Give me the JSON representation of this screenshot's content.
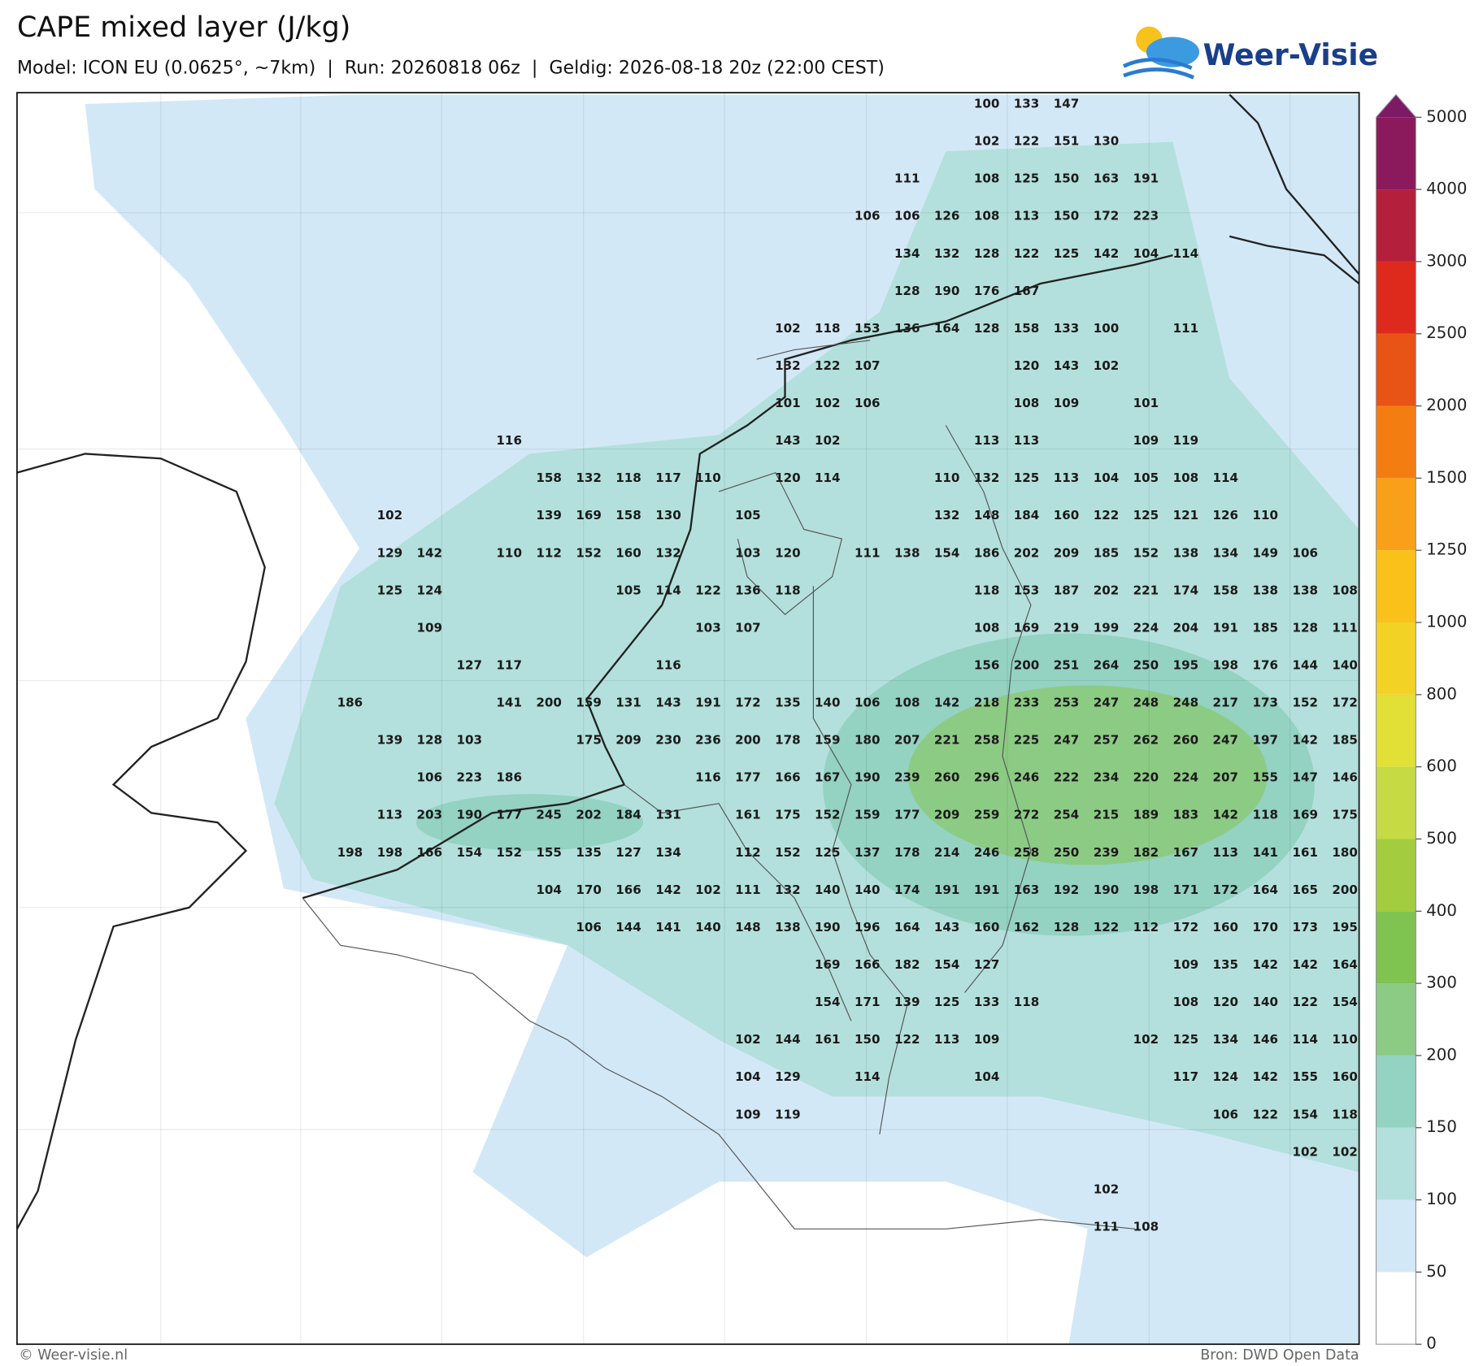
{
  "header": {
    "title": "CAPE mixed layer (J/kg)",
    "subtitle": "Model: ICON EU (0.0625°, ~7km)  |  Run: 20260818 06z  |  Geldig: 2026-08-18 20z (22:00 CEST)"
  },
  "logo": {
    "text": "Weer-Visie"
  },
  "map": {
    "labels": [
      [
        null,
        null,
        null,
        null,
        null,
        null,
        null,
        null,
        null,
        null,
        null,
        null,
        null,
        null,
        null,
        null,
        100,
        133,
        147
      ],
      [
        null,
        null,
        null,
        null,
        null,
        null,
        null,
        null,
        null,
        null,
        null,
        null,
        null,
        null,
        null,
        null,
        102,
        122,
        151,
        130
      ],
      [
        null,
        null,
        null,
        null,
        null,
        null,
        null,
        null,
        null,
        null,
        null,
        null,
        null,
        null,
        111,
        null,
        108,
        125,
        150,
        163,
        191
      ],
      [
        null,
        null,
        null,
        null,
        null,
        null,
        null,
        null,
        null,
        null,
        null,
        null,
        null,
        106,
        106,
        126,
        108,
        113,
        150,
        172,
        223
      ],
      [
        null,
        null,
        null,
        null,
        null,
        null,
        null,
        null,
        null,
        null,
        null,
        null,
        null,
        null,
        134,
        132,
        128,
        122,
        125,
        142,
        104,
        114
      ],
      [
        null,
        null,
        null,
        null,
        null,
        null,
        null,
        null,
        null,
        null,
        null,
        null,
        null,
        null,
        128,
        190,
        176,
        167
      ],
      [
        null,
        null,
        null,
        null,
        null,
        null,
        null,
        null,
        null,
        null,
        null,
        102,
        118,
        153,
        136,
        164,
        128,
        158,
        133,
        100,
        null,
        111
      ],
      [
        null,
        null,
        null,
        null,
        null,
        null,
        null,
        null,
        null,
        null,
        null,
        132,
        122,
        107,
        null,
        null,
        null,
        120,
        143,
        102
      ],
      [
        null,
        null,
        null,
        null,
        null,
        null,
        null,
        null,
        null,
        null,
        null,
        101,
        102,
        106,
        null,
        null,
        null,
        108,
        109,
        null,
        101
      ],
      [
        null,
        null,
        null,
        null,
        116,
        null,
        null,
        null,
        null,
        null,
        null,
        143,
        102,
        null,
        null,
        null,
        113,
        113,
        null,
        null,
        109,
        119
      ],
      [
        null,
        null,
        null,
        null,
        null,
        158,
        132,
        118,
        117,
        110,
        null,
        120,
        114,
        null,
        null,
        110,
        132,
        125,
        113,
        104,
        105,
        108,
        114
      ],
      [
        null,
        102,
        null,
        null,
        null,
        139,
        169,
        158,
        130,
        null,
        105,
        null,
        null,
        null,
        null,
        132,
        148,
        184,
        160,
        122,
        125,
        121,
        126,
        110
      ],
      [
        null,
        129,
        142,
        null,
        110,
        112,
        152,
        160,
        132,
        null,
        103,
        120,
        null,
        111,
        138,
        154,
        186,
        202,
        209,
        185,
        152,
        138,
        134,
        149,
        106
      ],
      [
        null,
        125,
        124,
        null,
        null,
        null,
        null,
        105,
        114,
        122,
        136,
        118,
        null,
        null,
        null,
        null,
        118,
        153,
        187,
        202,
        221,
        174,
        158,
        138,
        138,
        108
      ],
      [
        null,
        null,
        109,
        null,
        null,
        null,
        null,
        null,
        null,
        103,
        107,
        null,
        null,
        null,
        null,
        null,
        108,
        169,
        219,
        199,
        224,
        204,
        191,
        185,
        128,
        111
      ],
      [
        null,
        null,
        null,
        127,
        117,
        null,
        null,
        null,
        116,
        null,
        null,
        null,
        null,
        null,
        null,
        null,
        156,
        200,
        251,
        264,
        250,
        195,
        198,
        176,
        144,
        140
      ],
      [
        186,
        null,
        null,
        null,
        141,
        200,
        159,
        131,
        143,
        191,
        172,
        135,
        140,
        106,
        108,
        142,
        218,
        233,
        253,
        247,
        248,
        248,
        217,
        173,
        152,
        172
      ],
      [
        null,
        139,
        128,
        103,
        null,
        null,
        175,
        209,
        230,
        236,
        200,
        178,
        159,
        180,
        207,
        221,
        258,
        225,
        247,
        257,
        262,
        260,
        247,
        197,
        142,
        185
      ],
      [
        null,
        null,
        106,
        223,
        186,
        null,
        null,
        null,
        null,
        116,
        177,
        166,
        167,
        190,
        239,
        260,
        296,
        246,
        222,
        234,
        220,
        224,
        207,
        155,
        147,
        146
      ],
      [
        null,
        113,
        203,
        190,
        177,
        245,
        202,
        184,
        131,
        null,
        161,
        175,
        152,
        159,
        177,
        209,
        259,
        272,
        254,
        215,
        189,
        183,
        142,
        118,
        169,
        175
      ],
      [
        198,
        198,
        166,
        154,
        152,
        155,
        135,
        127,
        134,
        null,
        112,
        152,
        125,
        137,
        178,
        214,
        246,
        258,
        250,
        239,
        182,
        167,
        113,
        141,
        161,
        180
      ],
      [
        null,
        null,
        null,
        null,
        null,
        104,
        170,
        166,
        142,
        102,
        111,
        132,
        140,
        140,
        174,
        191,
        191,
        163,
        192,
        190,
        198,
        171,
        172,
        164,
        165,
        200
      ],
      [
        null,
        null,
        null,
        null,
        null,
        null,
        106,
        144,
        141,
        140,
        148,
        138,
        190,
        196,
        164,
        143,
        160,
        162,
        128,
        122,
        112,
        172,
        160,
        170,
        173,
        195
      ],
      [
        null,
        null,
        null,
        null,
        null,
        null,
        null,
        null,
        null,
        null,
        null,
        null,
        169,
        166,
        182,
        154,
        127,
        null,
        null,
        null,
        null,
        109,
        135,
        142,
        142,
        164
      ],
      [
        null,
        null,
        null,
        null,
        null,
        null,
        null,
        null,
        null,
        null,
        null,
        null,
        154,
        171,
        139,
        125,
        133,
        118,
        null,
        null,
        null,
        108,
        120,
        140,
        122,
        154
      ],
      [
        null,
        null,
        null,
        null,
        null,
        null,
        null,
        null,
        null,
        null,
        102,
        144,
        161,
        150,
        122,
        113,
        109,
        null,
        null,
        null,
        102,
        125,
        134,
        146,
        114,
        110
      ],
      [
        null,
        null,
        null,
        null,
        null,
        null,
        null,
        null,
        null,
        null,
        104,
        129,
        null,
        114,
        null,
        null,
        104,
        null,
        null,
        null,
        null,
        117,
        124,
        142,
        155,
        160
      ],
      [
        null,
        null,
        null,
        null,
        null,
        null,
        null,
        null,
        null,
        null,
        109,
        119,
        null,
        null,
        null,
        null,
        null,
        null,
        null,
        null,
        null,
        null,
        106,
        122,
        154,
        118
      ],
      [
        null,
        null,
        null,
        null,
        null,
        null,
        null,
        null,
        null,
        null,
        null,
        null,
        null,
        null,
        null,
        null,
        null,
        null,
        null,
        null,
        null,
        null,
        null,
        null,
        102,
        102
      ],
      [
        null,
        null,
        null,
        null,
        null,
        null,
        null,
        null,
        null,
        null,
        null,
        null,
        null,
        null,
        null,
        null,
        null,
        null,
        null,
        102
      ],
      [
        null,
        null,
        null,
        null,
        null,
        null,
        null,
        null,
        null,
        null,
        null,
        null,
        null,
        null,
        null,
        null,
        null,
        null,
        null,
        111,
        108
      ]
    ]
  },
  "colorbar": {
    "ticks": [
      0,
      50,
      100,
      150,
      200,
      300,
      400,
      500,
      600,
      800,
      1000,
      1250,
      1500,
      2000,
      2500,
      3000,
      4000,
      5000
    ],
    "colors": [
      "#ffffff",
      "#d3e8f6",
      "#b3e0dc",
      "#94d2c2",
      "#8ccb84",
      "#7fc350",
      "#a3cc3e",
      "#c6da44",
      "#e2df36",
      "#f3d226",
      "#f9c11a",
      "#f9a01a",
      "#f47d12",
      "#e85416",
      "#dd2a1c",
      "#b41f3b",
      "#8b1a5c"
    ],
    "extend_color": "#7d1a66"
  },
  "footer": {
    "left": "© Weer-visie.nl",
    "right": "Bron: DWD Open Data"
  }
}
